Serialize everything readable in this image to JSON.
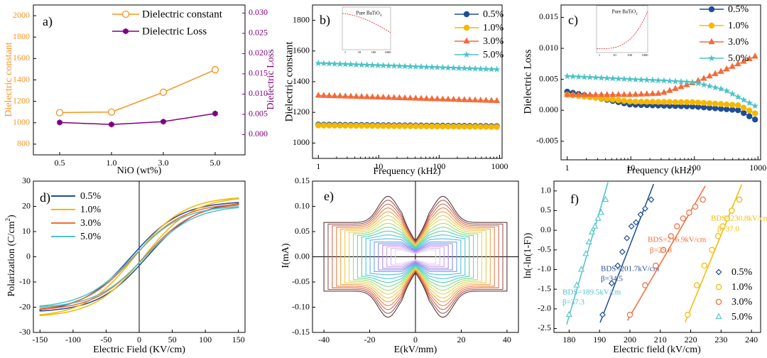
{
  "colors": {
    "orange": "#F7931E",
    "purple": "#800080",
    "navy": "#1F4E96",
    "yellow": "#F5B800",
    "coral": "#F26B3A",
    "teal": "#4EC3C7",
    "red": "#E02020"
  },
  "chart_data": [
    {
      "id": "a",
      "type": "line",
      "panel_label": "a)",
      "xlabel": "NiO (wt%)",
      "ylabel_left": "Dielectric constant",
      "ylabel_right": "Dielectric Loss",
      "categories": [
        "0.5",
        "1.0",
        "3.0",
        "5.0"
      ],
      "ylim_left": [
        700,
        2100
      ],
      "yticks_left": [
        "800",
        "1000",
        "1200",
        "1400",
        "1600",
        "1800",
        "2000"
      ],
      "ylim_right": [
        -0.005,
        0.032
      ],
      "yticks_right": [
        "0.000",
        "0.005",
        "0.010",
        "0.015",
        "0.020",
        "0.025",
        "0.030"
      ],
      "series": [
        {
          "name": "Dielectric constant",
          "axis": "left",
          "values": [
            1095,
            1100,
            1285,
            1495
          ]
        },
        {
          "name": "Dielectric Loss",
          "axis": "right",
          "values": [
            0.003,
            0.0025,
            0.0032,
            0.0052
          ]
        }
      ]
    },
    {
      "id": "b",
      "type": "line",
      "panel_label": "b)",
      "xlabel": "Frequency (kHz)",
      "ylabel": "Dielectric constant",
      "xscale": "log",
      "xlim": [
        0.8,
        1100
      ],
      "xticks": [
        "1",
        "10",
        "100",
        "1000"
      ],
      "ylim": [
        900,
        1900
      ],
      "yticks": [
        "1000",
        "1200",
        "1400",
        "1600",
        "1800"
      ],
      "inset_title": "Pure BaTiO",
      "inset_sub": "3",
      "legend": [
        "0.5%",
        "1.0%",
        "3.0%",
        "5.0%"
      ],
      "series": [
        {
          "name": "0.5%",
          "start": 1120,
          "end": 1110
        },
        {
          "name": "1.0%",
          "start": 1115,
          "end": 1105
        },
        {
          "name": "3.0%",
          "start": 1310,
          "end": 1275
        },
        {
          "name": "5.0%",
          "start": 1520,
          "end": 1480
        }
      ]
    },
    {
      "id": "c",
      "type": "line",
      "panel_label": "c)",
      "xlabel": "Frequency (kHz)",
      "ylabel": "Dielectric Loss",
      "xscale": "log",
      "xlim": [
        0.8,
        1100
      ],
      "xticks": [
        "1",
        "10",
        "100",
        "1000"
      ],
      "ylim": [
        -0.008,
        0.017
      ],
      "yticks": [
        "-0.005",
        "0.000",
        "0.005",
        "0.010",
        "0.015"
      ],
      "inset_title": "Pure BaTiO",
      "inset_sub": "3",
      "legend": [
        "0.5%",
        "1.0%",
        "3.0%",
        "5.0%"
      ],
      "series": [
        {
          "name": "0.5%",
          "pts": [
            [
              1,
              0.003
            ],
            [
              10,
              0.0009
            ],
            [
              100,
              0.0006
            ],
            [
              500,
              0.0
            ],
            [
              900,
              -0.0015
            ]
          ]
        },
        {
          "name": "1.0%",
          "pts": [
            [
              1,
              0.0025
            ],
            [
              10,
              0.0014
            ],
            [
              100,
              0.0013
            ],
            [
              500,
              0.0008
            ],
            [
              900,
              -0.0005
            ]
          ]
        },
        {
          "name": "3.0%",
          "pts": [
            [
              1,
              0.0025
            ],
            [
              10,
              0.0025
            ],
            [
              30,
              0.0027
            ],
            [
              100,
              0.0045
            ],
            [
              300,
              0.0065
            ],
            [
              900,
              0.0087
            ]
          ]
        },
        {
          "name": "5.0%",
          "pts": [
            [
              1,
              0.0055
            ],
            [
              10,
              0.005
            ],
            [
              30,
              0.0048
            ],
            [
              100,
              0.0045
            ],
            [
              300,
              0.0033
            ],
            [
              900,
              0.0007
            ]
          ]
        }
      ]
    },
    {
      "id": "d",
      "type": "line",
      "panel_label": "d)",
      "xlabel": "Electric Field (KV/cm)",
      "ylabel": "Polarization (C/cm",
      "ylabel_sup": "2",
      "ylabel_end": ")",
      "xlim": [
        -160,
        160
      ],
      "xticks": [
        "-150",
        "-100",
        "-50",
        "0",
        "50",
        "100",
        "150"
      ],
      "ylim": [
        -30,
        30
      ],
      "yticks": [
        "-30",
        "-20",
        "-10",
        "0",
        "10",
        "20",
        "30"
      ],
      "legend": [
        "0.5%",
        "1.0%",
        "3.0%",
        "5.0%"
      ],
      "series": [
        {
          "name": "0.5%",
          "pmax": 21,
          "coercive": 12
        },
        {
          "name": "1.0%",
          "pmax": 23,
          "coercive": 7
        },
        {
          "name": "3.0%",
          "pmax": 20.5,
          "coercive": 8
        },
        {
          "name": "5.0%",
          "pmax": 19.5,
          "coercive": 9
        }
      ]
    },
    {
      "id": "e",
      "type": "line",
      "panel_label": "e)",
      "xlabel": "E(kV/mm)",
      "ylabel": "I(mA)",
      "xlim": [
        -45,
        45
      ],
      "xticks": [
        "-40",
        "-20",
        "0",
        "20",
        "40"
      ],
      "ylim": [
        -0.15,
        0.15
      ],
      "yticks": [
        "-0.15",
        "-0.10",
        "-0.05",
        "0.00",
        "0.05",
        "0.10",
        "0.15"
      ],
      "loop_count": 18
    },
    {
      "id": "f",
      "type": "scatter",
      "panel_label": "f)",
      "xlabel": "Electric field (kV/cm)",
      "ylabel": "ln(-ln(1-F))",
      "xlim": [
        175,
        243
      ],
      "xticks": [
        "180",
        "190",
        "200",
        "210",
        "220",
        "230",
        "240"
      ],
      "ylim": [
        -2.6,
        1.25
      ],
      "yticks": [
        "-2.5",
        "-2.0",
        "-1.5",
        "-1.0",
        "-0.5",
        "0.0",
        "0.5",
        "1.0"
      ],
      "legend": [
        "0.5%",
        "1.0%",
        "3.0%",
        "5.0%"
      ],
      "series": [
        {
          "name": "0.5%",
          "bds": "BDS=201.7kV/cm",
          "beta": "β=34.5",
          "x": [
            191,
            194,
            196,
            197.5,
            199,
            200.5,
            202,
            203.5,
            205,
            207
          ],
          "y": [
            -2.15,
            -1.35,
            -0.9,
            -0.55,
            -0.2,
            0.1,
            0.2,
            0.4,
            0.55,
            0.78
          ]
        },
        {
          "name": "1.0%",
          "bds": "BDS=230.8kV/cm",
          "beta": "β=37.0",
          "x": [
            219,
            222,
            224.5,
            227,
            229,
            230.5,
            232,
            233.5,
            236
          ],
          "y": [
            -2.15,
            -1.4,
            -0.9,
            -0.5,
            -0.15,
            0.1,
            0.3,
            0.5,
            0.78
          ]
        },
        {
          "name": "3.0%",
          "bds": "BDS=216.9kV/cm",
          "beta": "β=25.8",
          "x": [
            200,
            205,
            208.5,
            211,
            213.5,
            215.5,
            217.5,
            219.5,
            221.5,
            224
          ],
          "y": [
            -2.15,
            -1.4,
            -0.9,
            -0.5,
            -0.15,
            0.1,
            0.3,
            0.45,
            0.6,
            0.78
          ]
        },
        {
          "name": "5.0%",
          "bds": "BDS=189.5kV/cm",
          "beta": "β=37.3",
          "x": [
            180,
            182.5,
            184,
            185.5,
            186.5,
            187.5,
            188.5,
            189.5,
            190.5,
            192
          ],
          "y": [
            -2.15,
            -1.4,
            -1.0,
            -0.6,
            -0.3,
            -0.05,
            0.1,
            0.3,
            0.45,
            0.78
          ]
        }
      ]
    }
  ]
}
